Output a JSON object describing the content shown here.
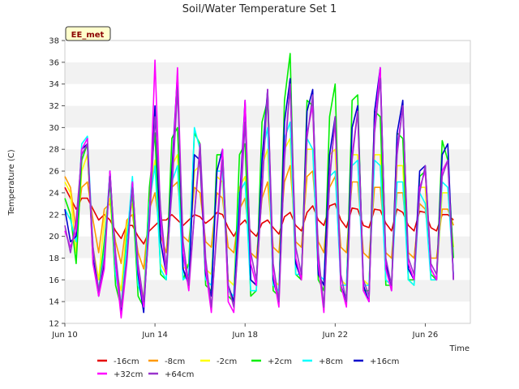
{
  "chart_data": {
    "type": "line",
    "title": "Soil/Water Temperature Set 1",
    "xlabel": "Time",
    "ylabel": "Temperature (C)",
    "badge": "EE_met",
    "ylim": [
      12,
      38
    ],
    "yticks": [
      12,
      14,
      16,
      18,
      20,
      22,
      24,
      26,
      28,
      30,
      32,
      34,
      36,
      38
    ],
    "xlim": [
      0,
      18
    ],
    "xticks": [
      {
        "x": 0,
        "label": "Jun 10"
      },
      {
        "x": 4,
        "label": "Jun 14"
      },
      {
        "x": 8,
        "label": "Jun 18"
      },
      {
        "x": 12,
        "label": "Jun 22"
      },
      {
        "x": 16,
        "label": "Jun 26"
      }
    ],
    "grid": "horizontal alternating bands",
    "legend_position": "bottom",
    "x": [
      0.0,
      0.25,
      0.5,
      0.75,
      1.0,
      1.25,
      1.5,
      1.75,
      2.0,
      2.25,
      2.5,
      2.75,
      3.0,
      3.25,
      3.5,
      3.75,
      4.0,
      4.25,
      4.5,
      4.75,
      5.0,
      5.25,
      5.5,
      5.75,
      6.0,
      6.25,
      6.5,
      6.75,
      7.0,
      7.25,
      7.5,
      7.75,
      8.0,
      8.25,
      8.5,
      8.75,
      9.0,
      9.25,
      9.5,
      9.75,
      10.0,
      10.25,
      10.5,
      10.75,
      11.0,
      11.25,
      11.5,
      11.75,
      12.0,
      12.25,
      12.5,
      12.75,
      13.0,
      13.25,
      13.5,
      13.75,
      14.0,
      14.25,
      14.5,
      14.75,
      15.0,
      15.25,
      15.5,
      15.75,
      16.0,
      16.25,
      16.5,
      16.75,
      17.0,
      17.25
    ],
    "series": [
      {
        "name": "-16cm",
        "color": "#e60000",
        "values": [
          24.5,
          23.5,
          22.5,
          23.5,
          23.5,
          22.5,
          21.5,
          22.0,
          21.5,
          20.5,
          19.8,
          21.0,
          21.0,
          20.0,
          19.3,
          20.5,
          21.0,
          21.5,
          21.5,
          22.0,
          21.5,
          21.0,
          21.5,
          22.0,
          21.8,
          21.2,
          21.6,
          22.2,
          22.0,
          20.8,
          20.0,
          21.0,
          21.5,
          20.5,
          20.0,
          21.2,
          21.5,
          20.8,
          20.2,
          21.8,
          22.2,
          21.0,
          20.5,
          22.2,
          22.8,
          21.5,
          21.0,
          22.8,
          23.0,
          21.5,
          20.8,
          22.6,
          22.5,
          21.0,
          20.8,
          22.5,
          22.4,
          21.2,
          20.5,
          22.5,
          22.2,
          21.0,
          20.5,
          22.3,
          22.2,
          20.8,
          20.5,
          22.0,
          22.0,
          21.5
        ]
      },
      {
        "name": "-8cm",
        "color": "#ff9900",
        "values": [
          25.5,
          24.5,
          20.5,
          24.5,
          25.0,
          21.5,
          18.5,
          22.5,
          23.0,
          19.5,
          17.5,
          21.5,
          22.0,
          18.5,
          17.0,
          22.5,
          24.0,
          20.0,
          18.5,
          24.5,
          25.0,
          20.0,
          19.5,
          24.5,
          24.0,
          19.5,
          19.0,
          24.0,
          23.5,
          19.0,
          18.5,
          22.5,
          23.5,
          18.5,
          18.0,
          23.5,
          25.0,
          19.0,
          18.5,
          25.0,
          26.5,
          19.5,
          19.0,
          25.5,
          26.0,
          19.5,
          18.5,
          24.5,
          25.5,
          19.0,
          18.5,
          25.0,
          25.0,
          18.5,
          18.0,
          24.5,
          24.5,
          18.5,
          18.0,
          24.0,
          24.0,
          18.5,
          18.0,
          23.0,
          22.5,
          18.0,
          18.0,
          22.5,
          22.5,
          21.0
        ]
      },
      {
        "name": "-2cm",
        "color": "#ffff00",
        "values": [
          25.0,
          24.0,
          18.5,
          26.0,
          27.5,
          19.0,
          16.0,
          21.5,
          23.5,
          17.0,
          15.0,
          21.0,
          23.0,
          16.0,
          14.5,
          24.0,
          27.0,
          17.5,
          16.5,
          26.5,
          27.5,
          17.0,
          17.5,
          26.0,
          26.5,
          17.0,
          16.5,
          25.5,
          25.0,
          16.0,
          15.5,
          24.5,
          25.5,
          16.0,
          15.5,
          26.5,
          28.0,
          16.0,
          15.5,
          28.0,
          29.0,
          16.5,
          16.0,
          28.0,
          28.0,
          16.5,
          15.5,
          27.5,
          28.0,
          16.0,
          15.5,
          27.5,
          27.5,
          16.0,
          15.5,
          27.5,
          27.5,
          16.0,
          15.5,
          26.5,
          26.5,
          16.0,
          15.5,
          24.5,
          24.5,
          16.0,
          16.0,
          24.0,
          24.0,
          19.0
        ]
      },
      {
        "name": "+2cm",
        "color": "#00ee00",
        "values": [
          23.5,
          22.0,
          17.5,
          27.0,
          28.5,
          17.5,
          15.0,
          19.5,
          25.0,
          15.5,
          13.5,
          20.0,
          24.0,
          14.5,
          13.5,
          24.5,
          29.5,
          16.5,
          16.0,
          29.0,
          30.0,
          16.0,
          17.5,
          29.5,
          28.5,
          15.5,
          15.0,
          27.5,
          27.5,
          14.5,
          14.0,
          27.5,
          28.5,
          14.5,
          15.0,
          30.5,
          32.5,
          15.0,
          14.5,
          32.5,
          36.8,
          16.5,
          16.0,
          32.5,
          32.0,
          16.0,
          15.0,
          31.0,
          34.0,
          15.0,
          14.5,
          32.5,
          33.0,
          15.0,
          15.0,
          31.5,
          31.0,
          15.5,
          15.5,
          29.5,
          29.0,
          16.0,
          16.0,
          25.5,
          26.0,
          16.5,
          16.0,
          28.8,
          27.0,
          18.0
        ]
      },
      {
        "name": "+8cm",
        "color": "#00ffff",
        "values": [
          22.5,
          21.5,
          19.5,
          28.5,
          29.2,
          19.0,
          15.0,
          18.5,
          26.0,
          16.5,
          13.5,
          19.5,
          25.5,
          15.5,
          14.0,
          23.0,
          26.5,
          17.0,
          16.0,
          25.0,
          26.5,
          16.0,
          16.5,
          30.0,
          28.0,
          16.0,
          15.5,
          26.0,
          26.0,
          15.0,
          14.5,
          24.0,
          25.0,
          15.0,
          15.0,
          27.5,
          30.0,
          15.5,
          15.0,
          29.0,
          30.5,
          16.5,
          16.5,
          29.0,
          28.0,
          16.5,
          16.0,
          25.5,
          26.0,
          15.5,
          15.5,
          26.5,
          27.0,
          15.5,
          15.5,
          27.0,
          26.5,
          16.0,
          15.5,
          25.0,
          25.0,
          16.0,
          15.5,
          24.0,
          23.0,
          16.0,
          16.0,
          25.0,
          24.5,
          16.5
        ]
      },
      {
        "name": "+16cm",
        "color": "#0000cc",
        "values": [
          22.5,
          19.5,
          20.0,
          28.0,
          28.5,
          18.0,
          14.5,
          17.5,
          26.0,
          17.5,
          13.0,
          18.0,
          25.0,
          16.5,
          13.0,
          22.0,
          32.0,
          19.5,
          16.5,
          26.0,
          35.0,
          17.0,
          15.5,
          27.5,
          27.0,
          16.5,
          14.5,
          26.0,
          28.0,
          15.5,
          14.0,
          23.0,
          32.5,
          16.0,
          15.5,
          27.0,
          33.5,
          16.0,
          14.0,
          30.5,
          34.5,
          17.5,
          16.0,
          31.5,
          33.5,
          16.5,
          15.5,
          27.5,
          31.0,
          15.5,
          14.0,
          30.0,
          32.0,
          15.5,
          14.0,
          31.5,
          35.5,
          17.5,
          15.0,
          29.5,
          32.5,
          17.0,
          16.0,
          26.0,
          26.5,
          17.0,
          16.0,
          27.5,
          28.5,
          16.0
        ]
      },
      {
        "name": "+32cm",
        "color": "#ff00ff",
        "values": [
          20.5,
          19.0,
          20.5,
          28.0,
          29.0,
          17.5,
          14.5,
          17.0,
          26.0,
          17.5,
          12.5,
          17.5,
          25.0,
          17.0,
          13.5,
          21.5,
          36.2,
          21.5,
          16.5,
          24.5,
          35.5,
          18.5,
          15.0,
          22.0,
          28.0,
          17.0,
          13.0,
          21.0,
          28.0,
          14.0,
          13.0,
          21.5,
          32.5,
          17.5,
          15.5,
          24.5,
          33.5,
          16.5,
          13.5,
          27.5,
          34.0,
          18.0,
          16.0,
          29.5,
          32.0,
          17.5,
          13.0,
          25.5,
          30.5,
          15.5,
          13.5,
          27.5,
          31.5,
          15.0,
          14.0,
          30.0,
          35.5,
          17.0,
          15.0,
          28.0,
          32.0,
          17.5,
          16.0,
          24.5,
          26.0,
          17.0,
          16.0,
          26.0,
          27.0,
          16.0
        ]
      },
      {
        "name": "+64cm",
        "color": "#9933cc",
        "values": [
          21.0,
          18.5,
          21.5,
          27.5,
          28.5,
          19.0,
          15.0,
          18.0,
          25.5,
          18.5,
          13.5,
          18.0,
          24.5,
          17.5,
          14.0,
          21.0,
          31.0,
          22.5,
          17.0,
          24.0,
          33.5,
          19.5,
          15.5,
          22.0,
          28.5,
          18.0,
          13.5,
          20.5,
          27.0,
          15.5,
          13.5,
          21.0,
          30.5,
          18.5,
          16.0,
          24.0,
          33.5,
          17.5,
          14.0,
          27.0,
          34.0,
          19.0,
          16.5,
          29.0,
          33.0,
          18.5,
          13.5,
          25.0,
          31.0,
          16.5,
          14.0,
          27.0,
          31.5,
          16.0,
          14.5,
          29.5,
          34.5,
          18.0,
          15.5,
          27.5,
          32.0,
          18.0,
          16.5,
          24.0,
          26.5,
          17.5,
          16.5,
          25.5,
          27.0,
          16.0
        ]
      }
    ]
  }
}
